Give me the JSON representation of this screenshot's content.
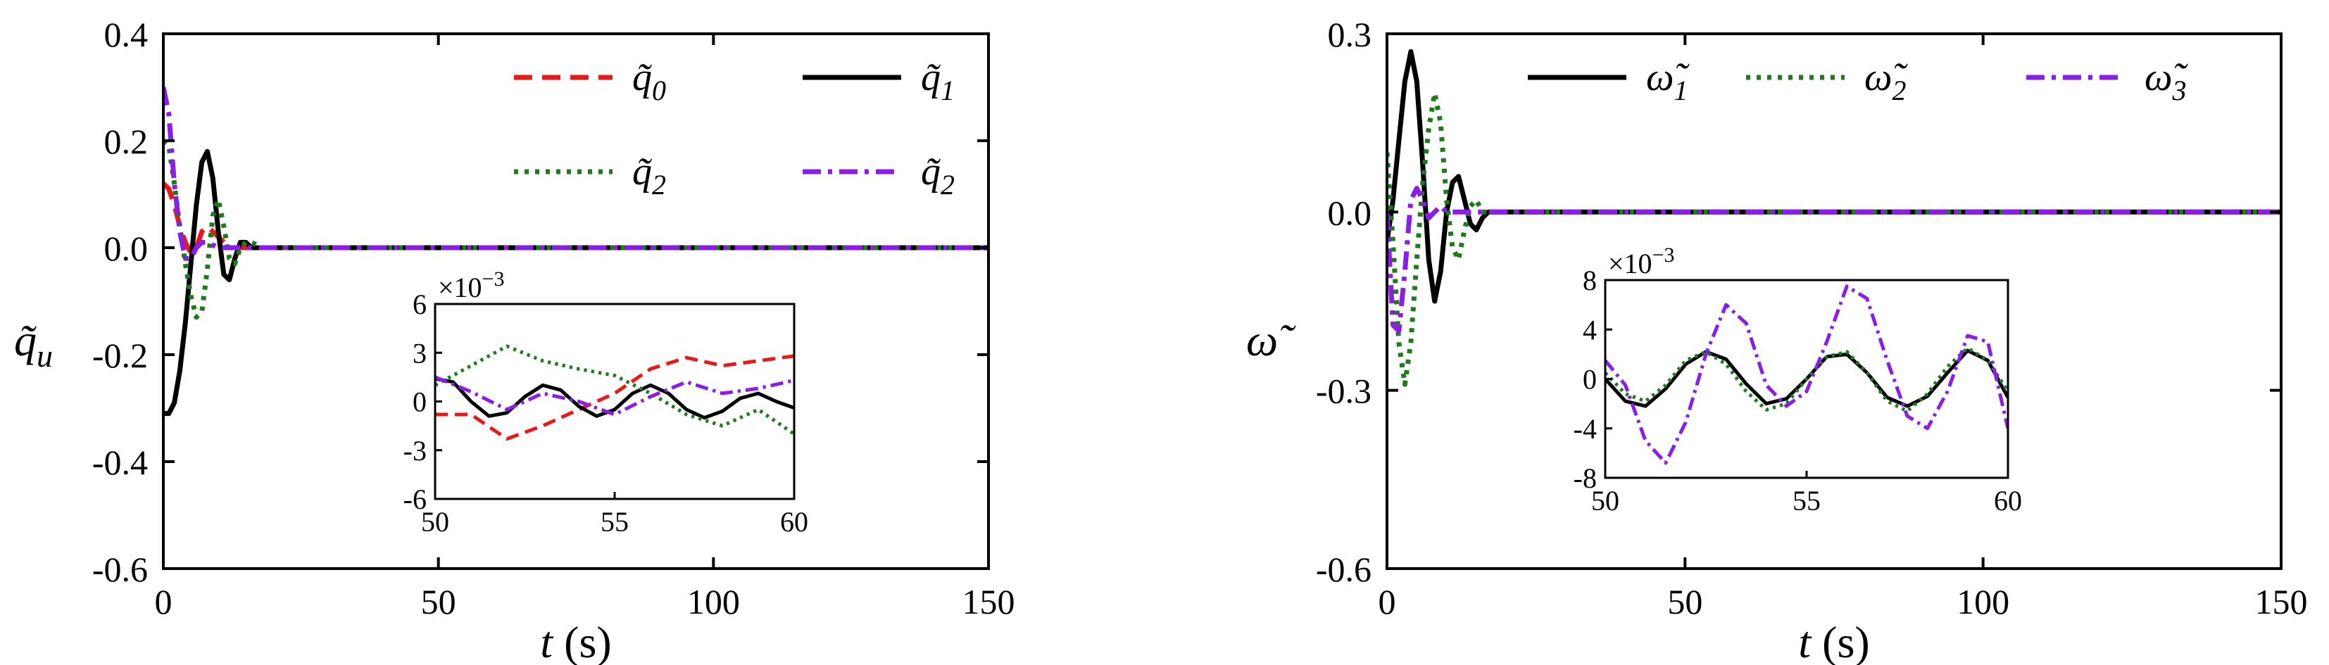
{
  "colors": {
    "q0": "#e8191a",
    "q1": "#000000",
    "q2": "#1f7a1f",
    "q3": "#8a1de6",
    "w1": "#000000",
    "w2": "#1f7a1f",
    "w3": "#8a1de6"
  },
  "chart_data": [
    {
      "type": "line",
      "ylabel": "q̃u",
      "ylabel_base": "q̃",
      "ylabel_sub": "u",
      "xlabel_var": "t",
      "xlabel_unit": " (s)",
      "xlim": [
        0,
        150
      ],
      "ylim": [
        -0.6,
        0.4
      ],
      "xticks": [
        0,
        50,
        100,
        150
      ],
      "xtick_labels": [
        "0",
        "50",
        "100",
        "150"
      ],
      "yticks": [
        -0.6,
        -0.4,
        -0.2,
        0.0,
        0.2,
        0.4
      ],
      "ytick_labels": [
        "-0.6",
        "-0.4",
        "-0.2",
        "0.0",
        "0.2",
        "0.4"
      ],
      "legend_position": "top-right",
      "series": [
        {
          "name": "q̃0",
          "legend_base": "q̃",
          "legend_sub": "0",
          "color": "#e8191a",
          "dash": "dashed",
          "x": [
            0,
            1,
            2,
            3,
            4,
            5,
            6,
            7,
            8,
            10,
            12,
            15,
            20,
            30,
            150
          ],
          "y": [
            0.12,
            0.11,
            0.08,
            0.04,
            0.01,
            -0.01,
            0.0,
            0.03,
            0.04,
            0.02,
            0.0,
            0.0,
            0.0,
            0.0,
            0.0
          ]
        },
        {
          "name": "q̃1",
          "legend_base": "q̃",
          "legend_sub": "1",
          "color": "#000000",
          "dash": "solid",
          "x": [
            0,
            1,
            2,
            3,
            4,
            5,
            6,
            7,
            8,
            9,
            10,
            11,
            12,
            13,
            14,
            15,
            16,
            18,
            20,
            30,
            150
          ],
          "y": [
            -0.31,
            -0.31,
            -0.29,
            -0.23,
            -0.14,
            -0.03,
            0.08,
            0.16,
            0.18,
            0.13,
            0.03,
            -0.05,
            -0.06,
            -0.02,
            0.01,
            0.01,
            0.0,
            0.0,
            0.0,
            0.0,
            0.0
          ]
        },
        {
          "name": "q̃2",
          "legend_base": "q̃",
          "legend_sub": "2",
          "color": "#1f7a1f",
          "dash": "dotted",
          "x": [
            0,
            1,
            2,
            3,
            4,
            5,
            6,
            7,
            8,
            9,
            10,
            11,
            12,
            13,
            14,
            15,
            16,
            18,
            20,
            30,
            150
          ],
          "y": [
            0.2,
            0.19,
            0.12,
            0.04,
            -0.03,
            -0.09,
            -0.13,
            -0.12,
            -0.04,
            0.06,
            0.09,
            0.04,
            -0.02,
            -0.03,
            0.0,
            0.01,
            0.01,
            0.0,
            0.0,
            0.0,
            0.0
          ]
        },
        {
          "name": "q̃2",
          "legend_base": "q̃",
          "legend_sub": "2",
          "color": "#8a1de6",
          "dash": "dashdot",
          "x": [
            0,
            1,
            2,
            3,
            4,
            5,
            6,
            7,
            8,
            10,
            12,
            15,
            20,
            30,
            150
          ],
          "y": [
            0.3,
            0.25,
            0.12,
            0.03,
            -0.02,
            -0.02,
            0.0,
            0.01,
            0.01,
            0.0,
            0.0,
            0.0,
            0.0,
            0.0,
            0.0
          ]
        }
      ],
      "inset": {
        "xlim": [
          50,
          60
        ],
        "ylim": [
          -6,
          6
        ],
        "scale_label": "×10",
        "scale_exp": "−3",
        "xticks": [
          50,
          55,
          60
        ],
        "xtick_labels": [
          "50",
          "55",
          "60"
        ],
        "yticks": [
          -6,
          -3,
          0,
          3,
          6
        ],
        "ytick_labels": [
          "-6",
          "-3",
          "0",
          "3",
          "6"
        ],
        "series": [
          {
            "color": "#e8191a",
            "dash": "dashed",
            "x": [
              50,
              51,
              52,
              53,
              54,
              55,
              56,
              57,
              58,
              59,
              60
            ],
            "y": [
              -0.8,
              -0.8,
              -2.3,
              -1.5,
              -0.5,
              0.5,
              2.0,
              2.7,
              2.2,
              2.5,
              2.8
            ]
          },
          {
            "color": "#000000",
            "dash": "solid",
            "x": [
              50,
              50.5,
              51,
              51.5,
              52,
              52.5,
              53,
              53.5,
              54,
              54.5,
              55,
              55.5,
              56,
              56.5,
              57,
              57.5,
              58,
              58.5,
              59,
              59.5,
              60
            ],
            "y": [
              1.4,
              1.2,
              0.0,
              -0.9,
              -0.7,
              0.3,
              1.0,
              0.7,
              -0.3,
              -0.9,
              -0.5,
              0.5,
              1.0,
              0.5,
              -0.5,
              -1.0,
              -0.6,
              0.2,
              0.5,
              0.0,
              -0.4
            ]
          },
          {
            "color": "#1f7a1f",
            "dash": "dotted",
            "x": [
              50,
              51,
              52,
              53,
              54,
              55,
              56,
              57,
              58,
              59,
              60
            ],
            "y": [
              1.0,
              2.2,
              3.4,
              2.5,
              2.0,
              1.6,
              0.5,
              -0.8,
              -1.5,
              -0.5,
              -2.0
            ]
          },
          {
            "color": "#8a1de6",
            "dash": "dashdot",
            "x": [
              50,
              51,
              52,
              53,
              54,
              55,
              56,
              57,
              58,
              59,
              60
            ],
            "y": [
              1.5,
              0.6,
              -0.5,
              0.5,
              0.0,
              -0.8,
              0.3,
              1.2,
              0.5,
              0.8,
              1.3
            ]
          }
        ]
      }
    },
    {
      "type": "line",
      "ylabel": "ω̃",
      "xlabel_var": "t",
      "xlabel_unit": " (s)",
      "xlim": [
        0,
        150
      ],
      "ylim": [
        -0.6,
        0.3
      ],
      "xticks": [
        0,
        50,
        100,
        150
      ],
      "xtick_labels": [
        "0",
        "50",
        "100",
        "150"
      ],
      "yticks": [
        -0.6,
        -0.3,
        0.0,
        0.3
      ],
      "ytick_labels": [
        "-0.6",
        "-0.3",
        "0.0",
        "0.3"
      ],
      "legend_position": "top",
      "series": [
        {
          "name": "ω̃1",
          "legend_base": "ω̃",
          "legend_sub": "1",
          "color": "#000000",
          "dash": "solid",
          "x": [
            0,
            1,
            2,
            3,
            4,
            5,
            6,
            7,
            8,
            9,
            10,
            11,
            12,
            13,
            14,
            15,
            16,
            17,
            18,
            20,
            150
          ],
          "y": [
            -0.05,
            0.02,
            0.12,
            0.22,
            0.27,
            0.22,
            0.08,
            -0.08,
            -0.15,
            -0.1,
            0.0,
            0.05,
            0.06,
            0.02,
            -0.02,
            -0.03,
            -0.01,
            0.0,
            0.0,
            0.0,
            0.0
          ]
        },
        {
          "name": "ω̃2",
          "legend_base": "ω̃",
          "legend_sub": "2",
          "color": "#1f7a1f",
          "dash": "dotted",
          "x": [
            0,
            1,
            2,
            3,
            4,
            5,
            6,
            7,
            8,
            9,
            10,
            11,
            12,
            13,
            14,
            15,
            16,
            18,
            20,
            150
          ],
          "y": [
            0.1,
            -0.05,
            -0.22,
            -0.29,
            -0.22,
            -0.08,
            0.05,
            0.14,
            0.2,
            0.15,
            0.02,
            -0.06,
            -0.08,
            -0.03,
            0.01,
            0.02,
            0.0,
            0.0,
            0.0,
            0.0
          ]
        },
        {
          "name": "ω̃3",
          "legend_base": "ω̃",
          "legend_sub": "3",
          "color": "#8a1de6",
          "dash": "dashdot",
          "x": [
            0,
            1,
            2,
            3,
            4,
            5,
            6,
            7,
            8,
            9,
            10,
            12,
            15,
            20,
            150
          ],
          "y": [
            0.0,
            -0.19,
            -0.2,
            -0.1,
            0.02,
            0.04,
            0.02,
            -0.01,
            0.0,
            0.01,
            0.0,
            0.0,
            0.0,
            0.0,
            0.0
          ]
        }
      ],
      "inset": {
        "xlim": [
          50,
          60
        ],
        "ylim": [
          -8,
          8
        ],
        "scale_label": "×10",
        "scale_exp": "−3",
        "xticks": [
          50,
          55,
          60
        ],
        "xtick_labels": [
          "50",
          "55",
          "60"
        ],
        "yticks": [
          -8,
          -4,
          0,
          4,
          8
        ],
        "ytick_labels": [
          "-8",
          "-4",
          "0",
          "4",
          "8"
        ],
        "series": [
          {
            "color": "#000000",
            "dash": "solid",
            "x": [
              50,
              50.5,
              51,
              51.5,
              52,
              52.5,
              53,
              53.5,
              54,
              54.5,
              55,
              55.5,
              56,
              56.5,
              57,
              57.5,
              58,
              58.5,
              59,
              59.5,
              60
            ],
            "y": [
              0.0,
              -1.8,
              -2.2,
              -0.8,
              1.2,
              2.2,
              1.6,
              -0.4,
              -2.0,
              -1.6,
              0.0,
              1.8,
              2.0,
              0.5,
              -1.5,
              -2.2,
              -1.4,
              0.5,
              2.3,
              1.5,
              -1.5
            ]
          },
          {
            "color": "#1f7a1f",
            "dash": "dotted",
            "x": [
              50,
              50.5,
              51,
              51.5,
              52,
              52.5,
              53,
              53.5,
              54,
              54.5,
              55,
              55.5,
              56,
              56.5,
              57,
              57.5,
              58,
              58.5,
              59,
              59.5,
              60
            ],
            "y": [
              0.5,
              -1.2,
              -1.8,
              -0.5,
              1.5,
              2.2,
              1.2,
              -1.0,
              -2.5,
              -2.0,
              0.0,
              1.8,
              2.2,
              0.5,
              -1.8,
              -2.6,
              -1.2,
              1.0,
              2.5,
              1.5,
              -1.0
            ]
          },
          {
            "color": "#8a1de6",
            "dash": "dashdot",
            "x": [
              50,
              50.5,
              51,
              51.5,
              52,
              52.5,
              53,
              53.5,
              54,
              54.5,
              55,
              55.5,
              56,
              56.5,
              57,
              57.5,
              58,
              58.5,
              59,
              59.5,
              60
            ],
            "y": [
              1.5,
              -0.5,
              -5.0,
              -6.8,
              -3.5,
              2.0,
              6.0,
              4.5,
              -0.5,
              -2.2,
              -1.0,
              3.0,
              7.5,
              6.5,
              1.5,
              -3.0,
              -4.0,
              -1.0,
              3.5,
              3.0,
              -4.0
            ]
          }
        ]
      }
    }
  ]
}
